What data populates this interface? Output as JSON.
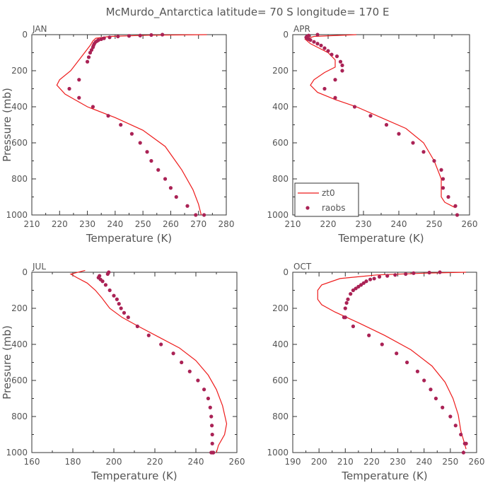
{
  "page_title": "McMurdo_Antarctica  latitude= 70 S longitude= 170 E",
  "colors": {
    "model": "#ee1c1c",
    "obs": "#aa2255",
    "text": "#555555",
    "frame": "#333333"
  },
  "chart_data": [
    {
      "type": "line+scatter",
      "title": "JAN",
      "xlabel": "Temperature (K)",
      "ylabel": "Pressure (mb)",
      "xlim": [
        210,
        280
      ],
      "ylim": [
        1000,
        0
      ],
      "xticks": [
        210,
        220,
        230,
        240,
        250,
        260,
        270,
        280
      ],
      "yticks": [
        0,
        200,
        400,
        600,
        800,
        1000
      ],
      "series": [
        {
          "name": "zt0",
          "kind": "line",
          "x": [
            273,
            252,
            238,
            233,
            232,
            231,
            228,
            224,
            220,
            219,
            222,
            230,
            240,
            250,
            258,
            264,
            268,
            270,
            271
          ],
          "y": [
            0,
            3,
            10,
            20,
            35,
            60,
            120,
            200,
            250,
            280,
            330,
            400,
            460,
            530,
            620,
            750,
            860,
            940,
            1000
          ]
        },
        {
          "name": "raobs",
          "kind": "scatter",
          "x": [
            257,
            253,
            249,
            245,
            241,
            238,
            236,
            235,
            234,
            233.5,
            233,
            232.5,
            232.2,
            232,
            231.5,
            231,
            230.5,
            230,
            227,
            223.5,
            227,
            232,
            237.5,
            242,
            246,
            249,
            251.5,
            253,
            255.5,
            258,
            260,
            262,
            266,
            269,
            272
          ],
          "y": [
            0,
            2,
            5,
            7,
            10,
            15,
            20,
            25,
            30,
            35,
            40,
            50,
            60,
            70,
            85,
            100,
            125,
            150,
            250,
            300,
            350,
            400,
            450,
            500,
            550,
            600,
            650,
            700,
            750,
            800,
            850,
            900,
            950,
            1000,
            1000
          ]
        }
      ]
    },
    {
      "type": "line+scatter",
      "title": "APR",
      "xlabel": "Temperature (K)",
      "ylabel": "",
      "xlim": [
        210,
        260
      ],
      "ylim": [
        1000,
        0
      ],
      "xticks": [
        210,
        220,
        230,
        240,
        250,
        260
      ],
      "yticks": [
        0,
        200,
        400,
        600,
        800,
        1000
      ],
      "series": [
        {
          "name": "zt0",
          "kind": "line",
          "x": [
            228,
            216,
            213.5,
            215,
            220,
            222,
            222,
            219,
            216,
            215,
            217,
            222,
            228,
            235,
            242,
            247,
            250,
            252,
            252,
            253,
            256
          ],
          "y": [
            0,
            10,
            25,
            50,
            100,
            140,
            180,
            210,
            250,
            280,
            320,
            360,
            400,
            460,
            520,
            600,
            700,
            800,
            900,
            930,
            960
          ]
        },
        {
          "name": "raobs",
          "kind": "scatter",
          "x": [
            217,
            214.5,
            214,
            213.8,
            214,
            214.5,
            215,
            216,
            217,
            218,
            219,
            220,
            221,
            222.5,
            223.5,
            224,
            224,
            222,
            219,
            222,
            227.5,
            232,
            236.5,
            240,
            244,
            247,
            250,
            252,
            252.5,
            252.5,
            254,
            256,
            256.5
          ],
          "y": [
            0,
            5,
            10,
            15,
            20,
            25,
            30,
            40,
            50,
            60,
            75,
            90,
            110,
            120,
            150,
            170,
            200,
            250,
            300,
            350,
            400,
            450,
            500,
            550,
            600,
            650,
            700,
            750,
            800,
            850,
            900,
            950,
            1000
          ]
        }
      ]
    },
    {
      "type": "line+scatter",
      "title": "JUL",
      "xlabel": "Temperature (K)",
      "ylabel": "Pressure (mb)",
      "xlim": [
        160,
        260
      ],
      "ylim": [
        1000,
        0
      ],
      "xticks": [
        160,
        180,
        200,
        220,
        240,
        260
      ],
      "yticks": [
        0,
        200,
        400,
        600,
        800,
        1000
      ],
      "series": [
        {
          "name": "zt0",
          "kind": "line",
          "x": [
            186,
            179,
            182,
            187,
            191,
            194,
            196,
            198,
            204,
            212,
            222,
            232,
            240,
            246,
            250,
            253,
            255,
            254,
            251,
            250
          ],
          "y": [
            -10,
            10,
            30,
            60,
            100,
            140,
            170,
            200,
            250,
            300,
            360,
            420,
            490,
            570,
            650,
            740,
            840,
            900,
            960,
            1000
          ]
        },
        {
          "name": "raobs",
          "kind": "scatter",
          "x": [
            197.5,
            197,
            193,
            192.5,
            193.5,
            194.5,
            196,
            198,
            200,
            201.5,
            202.5,
            203.5,
            205,
            207,
            211.5,
            217,
            223,
            229,
            233,
            237,
            241,
            244,
            246,
            247,
            247.5,
            247.8,
            248,
            248,
            248.5,
            248.5,
            248,
            247.5
          ],
          "y": [
            0,
            10,
            20,
            30,
            40,
            50,
            70,
            100,
            130,
            150,
            175,
            200,
            225,
            250,
            300,
            350,
            400,
            450,
            500,
            550,
            600,
            650,
            700,
            750,
            800,
            850,
            900,
            950,
            1000,
            1000,
            1000,
            1000
          ]
        }
      ]
    },
    {
      "type": "line+scatter",
      "title": "OCT",
      "xlabel": "Temperature (K)",
      "ylabel": "",
      "xlim": [
        190,
        260
      ],
      "ylim": [
        1000,
        0
      ],
      "xticks": [
        190,
        200,
        210,
        220,
        230,
        240,
        250,
        260
      ],
      "yticks": [
        0,
        200,
        400,
        600,
        800,
        1000
      ],
      "series": [
        {
          "name": "zt0",
          "kind": "line",
          "x": [
            256,
            240,
            222,
            208,
            201,
            199.5,
            199.5,
            201,
            206,
            215,
            225,
            235,
            243,
            248,
            251,
            253,
            254,
            255,
            256
          ],
          "y": [
            0,
            5,
            15,
            35,
            70,
            100,
            150,
            180,
            220,
            280,
            350,
            430,
            520,
            610,
            700,
            790,
            880,
            930,
            980
          ]
        },
        {
          "name": "raobs",
          "kind": "scatter",
          "x": [
            246,
            242,
            236,
            233,
            229,
            226,
            223,
            221,
            219.5,
            218,
            217,
            216,
            215,
            214,
            213,
            212,
            211,
            210.5,
            210,
            210,
            209.5,
            213,
            219,
            224,
            229.5,
            233.5,
            237.5,
            240,
            242.5,
            244.5,
            247,
            250,
            252,
            254,
            255.5,
            256,
            255
          ],
          "y": [
            0,
            2,
            5,
            10,
            15,
            20,
            25,
            35,
            40,
            50,
            60,
            70,
            80,
            90,
            100,
            120,
            150,
            170,
            200,
            250,
            250,
            300,
            350,
            400,
            450,
            500,
            550,
            600,
            650,
            700,
            750,
            800,
            850,
            900,
            950,
            950,
            1000
          ]
        }
      ]
    }
  ],
  "legend": {
    "line_label": "zt0",
    "scatter_label": "raobs"
  }
}
